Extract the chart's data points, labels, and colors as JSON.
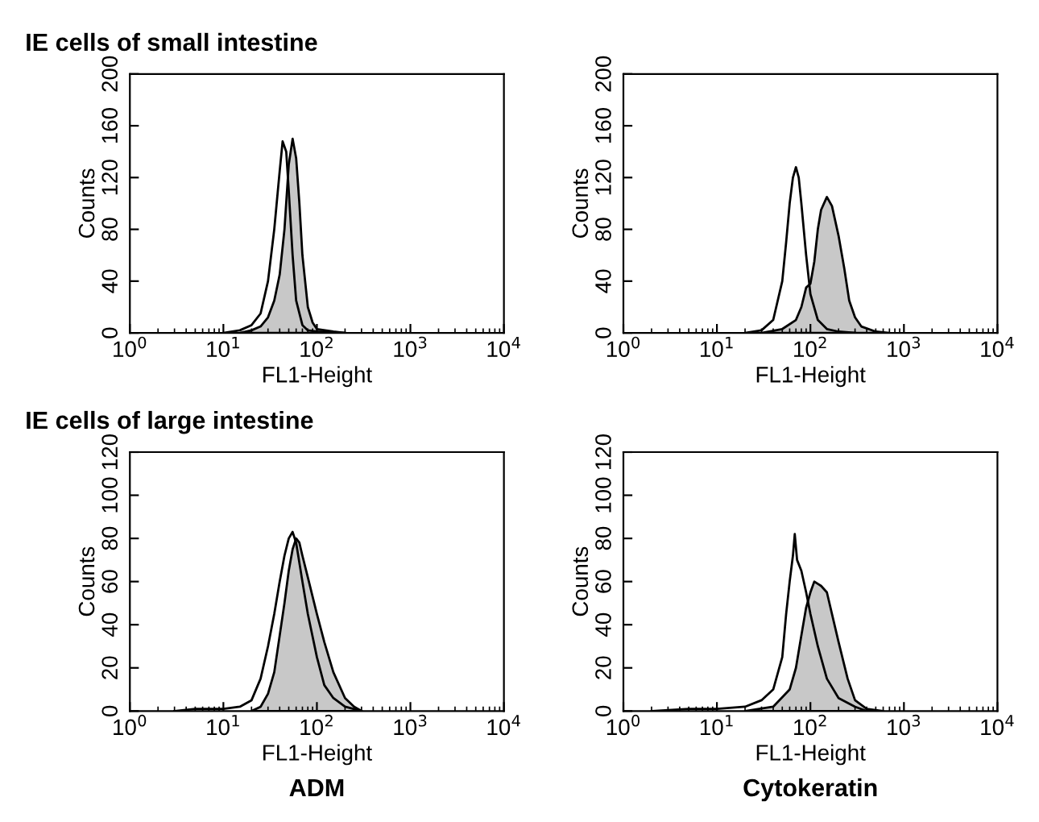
{
  "chart_data": [
    {
      "type": "line",
      "title": "IE cells of small intestine",
      "xlabel": "FL1-Height",
      "ylabel": "Counts",
      "log": "x",
      "xlim": [
        1,
        10000
      ],
      "xticks": [
        {
          "value": 1,
          "label": "10$^{0}$"
        },
        {
          "value": 10,
          "label": "10$^{1}$"
        },
        {
          "value": 100,
          "label": "10$^{2}$"
        },
        {
          "value": 1000,
          "label": "10$^{3}$"
        },
        {
          "value": 10000,
          "label": "10$^{4}$"
        }
      ],
      "ylim": [
        0,
        200
      ],
      "yticks": [
        0,
        40,
        80,
        120,
        160,
        200
      ],
      "series": [
        {
          "color": "#000000",
          "x": [
            10,
            15,
            20,
            25,
            30,
            35,
            40,
            43,
            47,
            50,
            55,
            60,
            70,
            80,
            100,
            200
          ],
          "values": [
            0,
            2,
            6,
            15,
            40,
            80,
            125,
            148,
            140,
            110,
            60,
            25,
            6,
            2,
            1,
            0
          ]
        },
        {
          "type": "area",
          "color": "#c8c8c8",
          "x": [
            15,
            20,
            25,
            30,
            35,
            40,
            45,
            50,
            55,
            60,
            65,
            70,
            80,
            90,
            100,
            150,
            200
          ],
          "values": [
            0,
            2,
            5,
            12,
            25,
            45,
            80,
            130,
            150,
            135,
            100,
            60,
            20,
            8,
            3,
            1,
            0
          ]
        }
      ]
    },
    {
      "type": "line",
      "xlabel": "FL1-Height",
      "ylabel": "Counts",
      "log": "x",
      "xlim": [
        1,
        10000
      ],
      "xticks": [
        {
          "value": 1,
          "label": "10$^{0}$"
        },
        {
          "value": 10,
          "label": "10$^{1}$"
        },
        {
          "value": 100,
          "label": "10$^{2}$"
        },
        {
          "value": 1000,
          "label": "10$^{3}$"
        },
        {
          "value": 10000,
          "label": "10$^{4}$"
        }
      ],
      "ylim": [
        0,
        200
      ],
      "yticks": [
        0,
        40,
        80,
        120,
        160,
        200
      ],
      "series": [
        {
          "color": "#000000",
          "x": [
            20,
            30,
            40,
            50,
            55,
            60,
            65,
            70,
            75,
            80,
            90,
            100,
            120,
            150,
            200,
            300
          ],
          "values": [
            0,
            2,
            10,
            40,
            70,
            100,
            120,
            128,
            120,
            100,
            60,
            30,
            10,
            3,
            1,
            0
          ]
        },
        {
          "type": "area",
          "color": "#c8c8c8",
          "x": [
            30,
            50,
            70,
            80,
            90,
            100,
            110,
            120,
            130,
            150,
            170,
            200,
            230,
            260,
            300,
            350,
            500,
            700
          ],
          "values": [
            0,
            3,
            10,
            20,
            35,
            38,
            55,
            80,
            95,
            105,
            98,
            75,
            50,
            25,
            12,
            5,
            1,
            0
          ]
        }
      ]
    },
    {
      "type": "line",
      "title": "IE cells of large intestine",
      "xlabel": "FL1-Height",
      "ylabel": "Counts",
      "annotations": [
        "ADM"
      ],
      "log": "x",
      "xlim": [
        1,
        10000
      ],
      "xticks": [
        {
          "value": 1,
          "label": "10$^{0}$"
        },
        {
          "value": 10,
          "label": "10$^{1}$"
        },
        {
          "value": 100,
          "label": "10$^{2}$"
        },
        {
          "value": 1000,
          "label": "10$^{3}$"
        },
        {
          "value": 10000,
          "label": "10$^{4}$"
        }
      ],
      "ylim": [
        0,
        120
      ],
      "yticks": [
        0,
        20,
        40,
        60,
        80,
        100,
        120
      ],
      "series": [
        {
          "color": "#000000",
          "x": [
            3,
            5,
            10,
            15,
            20,
            25,
            30,
            35,
            40,
            45,
            50,
            55,
            60,
            70,
            80,
            100,
            120,
            150,
            200,
            300
          ],
          "values": [
            0,
            1,
            1,
            2,
            5,
            15,
            30,
            45,
            60,
            72,
            80,
            83,
            78,
            60,
            45,
            25,
            12,
            6,
            2,
            0
          ]
        },
        {
          "type": "area",
          "color": "#c8c8c8",
          "x": [
            20,
            25,
            30,
            35,
            40,
            45,
            50,
            55,
            60,
            65,
            70,
            80,
            100,
            120,
            150,
            200,
            250,
            300
          ],
          "values": [
            0,
            2,
            8,
            18,
            35,
            50,
            65,
            75,
            80,
            78,
            72,
            62,
            45,
            32,
            18,
            6,
            2,
            0
          ]
        }
      ]
    },
    {
      "type": "line",
      "xlabel": "FL1-Height",
      "ylabel": "Counts",
      "annotations": [
        "Cytokeratin"
      ],
      "log": "x",
      "xlim": [
        1,
        10000
      ],
      "xticks": [
        {
          "value": 1,
          "label": "10$^{0}$"
        },
        {
          "value": 10,
          "label": "10$^{1}$"
        },
        {
          "value": 100,
          "label": "10$^{2}$"
        },
        {
          "value": 1000,
          "label": "10$^{3}$"
        },
        {
          "value": 10000,
          "label": "10$^{4}$"
        }
      ],
      "ylim": [
        0,
        120
      ],
      "yticks": [
        0,
        20,
        40,
        60,
        80,
        100,
        120
      ],
      "series": [
        {
          "color": "#000000",
          "x": [
            2,
            5,
            10,
            20,
            30,
            40,
            50,
            55,
            60,
            65,
            68,
            72,
            80,
            90,
            100,
            120,
            150,
            200,
            300,
            400
          ],
          "values": [
            0,
            1,
            1,
            2,
            5,
            10,
            25,
            45,
            60,
            72,
            82,
            70,
            65,
            55,
            45,
            30,
            15,
            6,
            2,
            0
          ]
        },
        {
          "type": "area",
          "color": "#c8c8c8",
          "x": [
            20,
            40,
            60,
            70,
            80,
            90,
            100,
            110,
            130,
            150,
            170,
            200,
            250,
            300,
            400,
            600
          ],
          "values": [
            0,
            2,
            10,
            20,
            35,
            48,
            55,
            60,
            58,
            55,
            45,
            32,
            15,
            5,
            1,
            0
          ]
        }
      ]
    }
  ]
}
